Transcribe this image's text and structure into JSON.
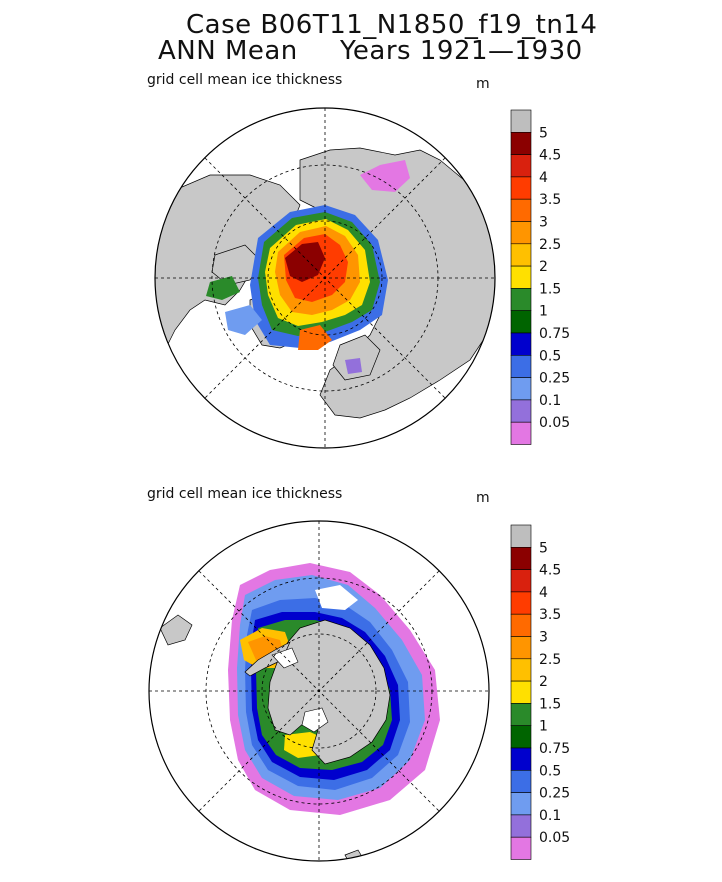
{
  "title": {
    "line1": "Case B06T11_N1850_f19_tn14",
    "line2_left": "ANN Mean",
    "line2_right": "Years 1921—1930"
  },
  "panels": [
    {
      "id": "north",
      "label": "grid cell mean ice thickness",
      "unit": "m"
    },
    {
      "id": "south",
      "label": "grid cell mean ice thickness",
      "unit": "m"
    }
  ],
  "colorbar": {
    "labels": [
      "5",
      "4.5",
      "4",
      "3.5",
      "3",
      "2.5",
      "2",
      "1.5",
      "1",
      "0.75",
      "0.5",
      "0.25",
      "0.1",
      "0.05"
    ],
    "colors": [
      "#bebebe",
      "#8b0000",
      "#d9210e",
      "#ff3c00",
      "#ff6a00",
      "#ff9500",
      "#ffc000",
      "#ffe000",
      "#2a8a2a",
      "#006400",
      "#0000cd",
      "#3c6ee6",
      "#6f9cf0",
      "#9370db",
      "#e377e3"
    ]
  },
  "colors": {
    "land": "#c8c8c8",
    "ocean": "#ffffff",
    "grid": "#000000"
  }
}
